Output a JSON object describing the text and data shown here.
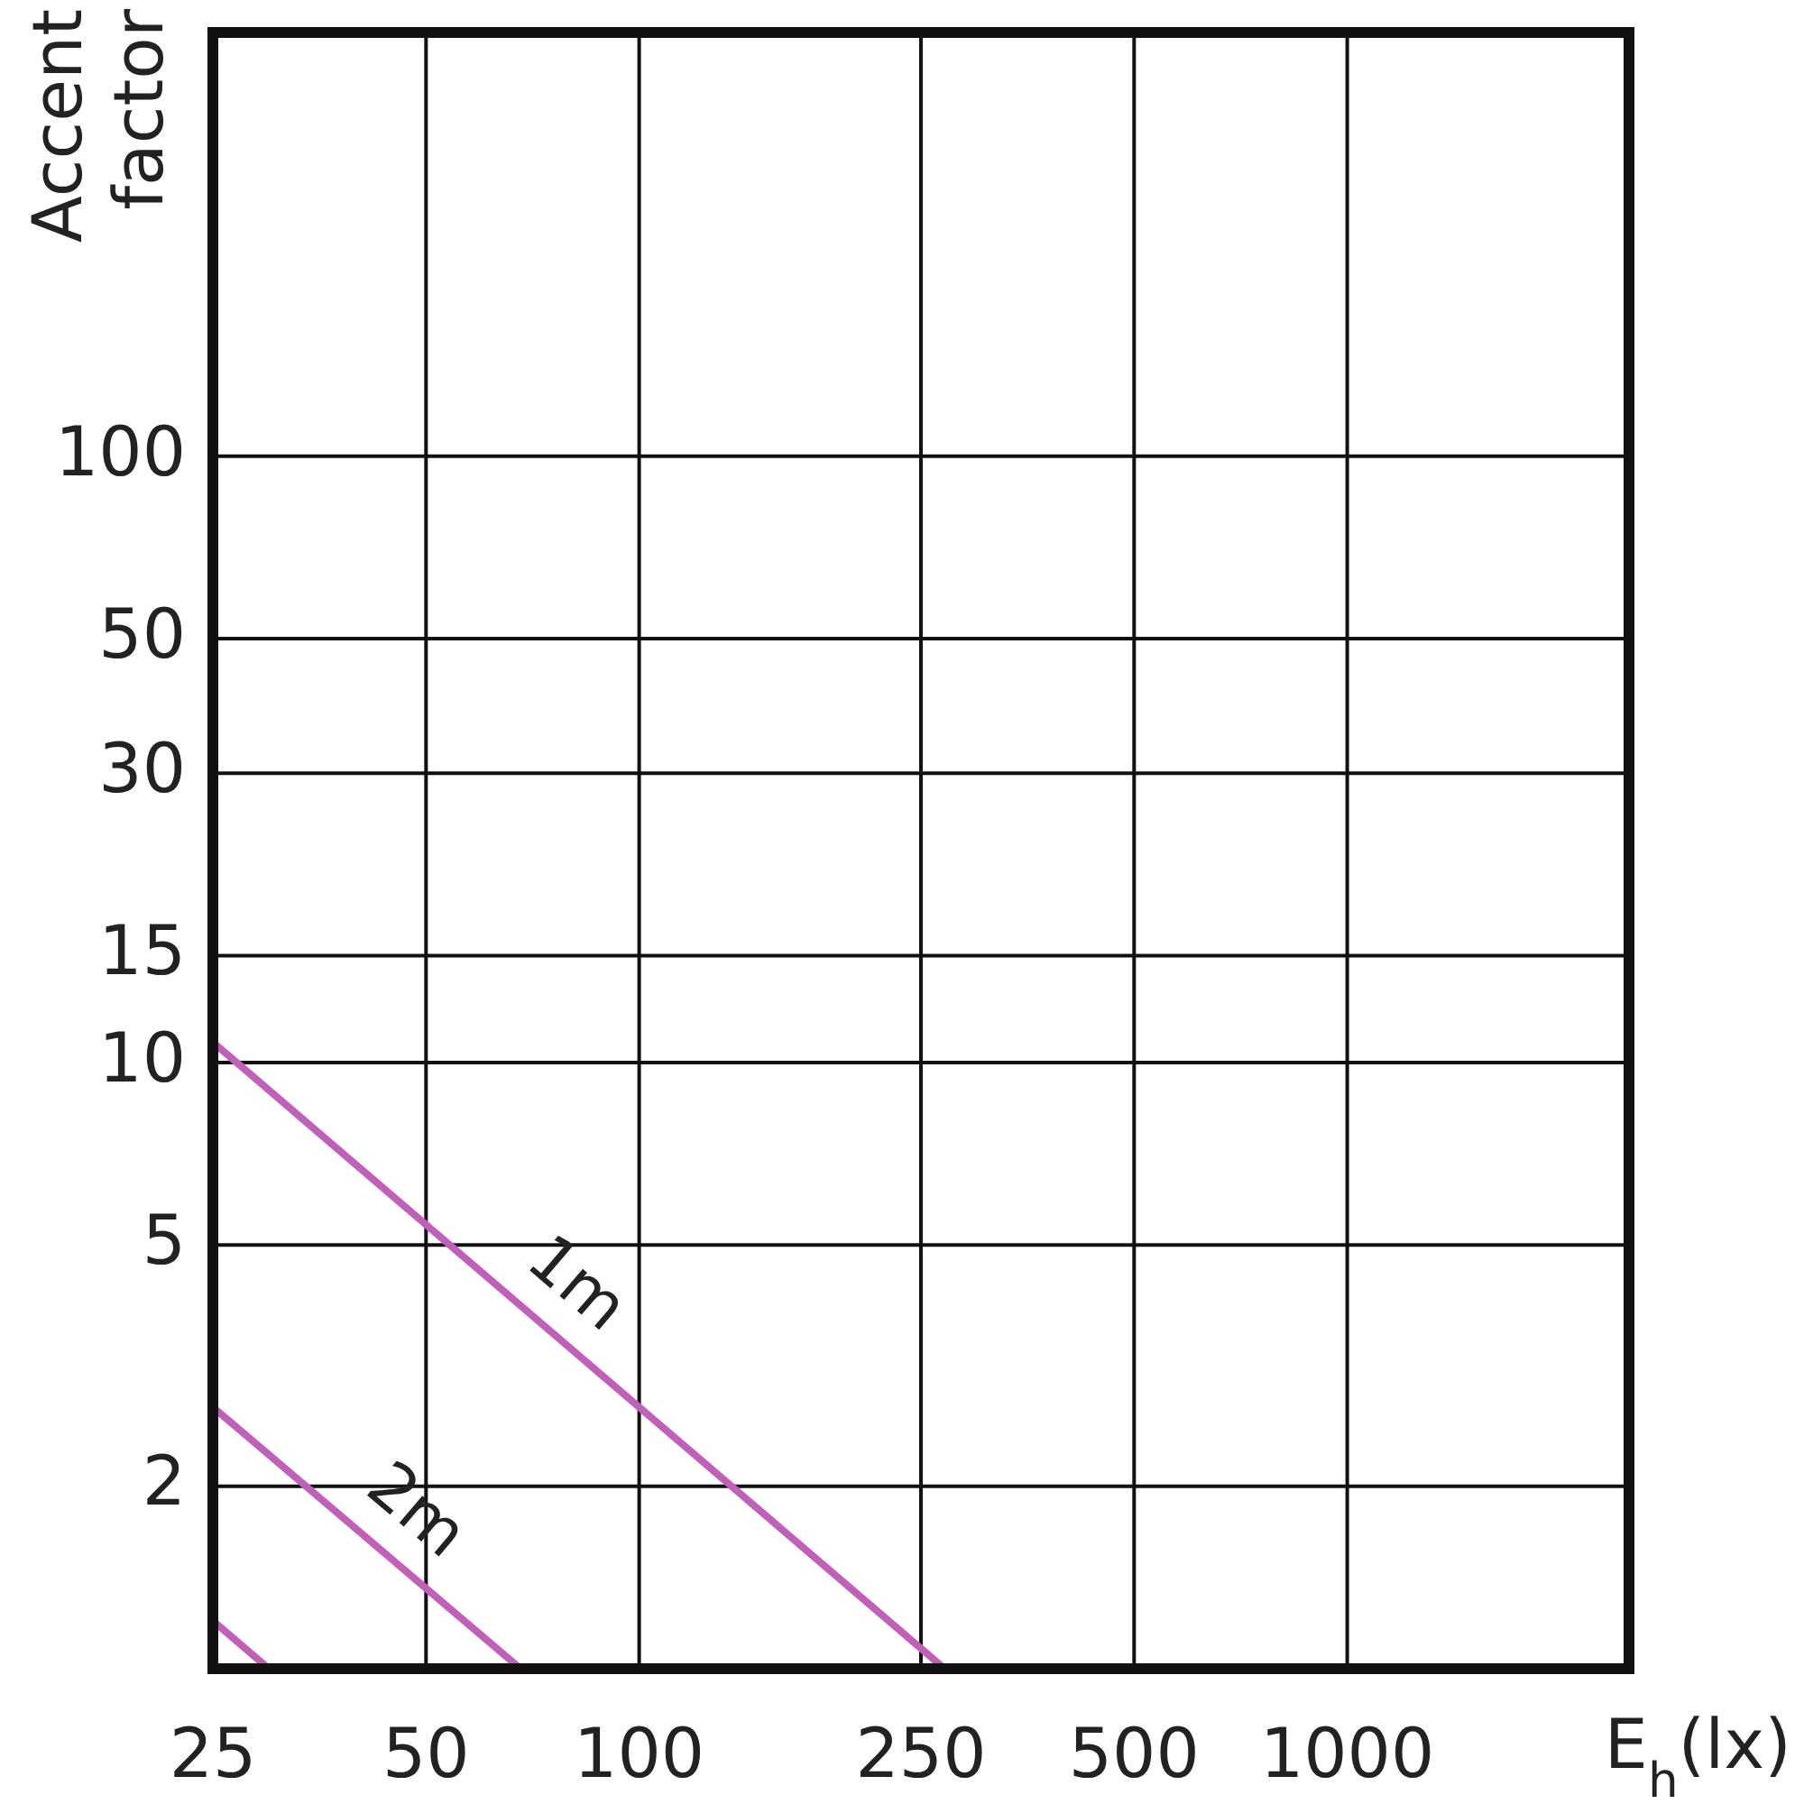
{
  "chart_data": {
    "type": "line",
    "xlabel": "E$_{h}$(lx)",
    "ylabel": "Accent factor",
    "log": "xy",
    "grid": true,
    "marker": "none",
    "line_style": "solid",
    "xlim": [
      25,
      2500
    ],
    "xticks": [
      25,
      50,
      100,
      250,
      500,
      1000
    ],
    "ylim": [
      1,
      500
    ],
    "yticks": [
      2,
      5,
      10,
      15,
      30,
      50,
      100
    ],
    "series": [
      {
        "name": "1m",
        "color": "#c060b8",
        "x": [
          25,
          270
        ],
        "values": [
          10.8,
          1
        ]
      },
      {
        "name": "2m",
        "color": "#c060b8",
        "x": [
          25,
          68
        ],
        "values": [
          2.7,
          1
        ]
      },
      {
        "color": "#c060b8",
        "x": [
          25,
          30
        ],
        "values": [
          1.2,
          1
        ]
      }
    ]
  }
}
